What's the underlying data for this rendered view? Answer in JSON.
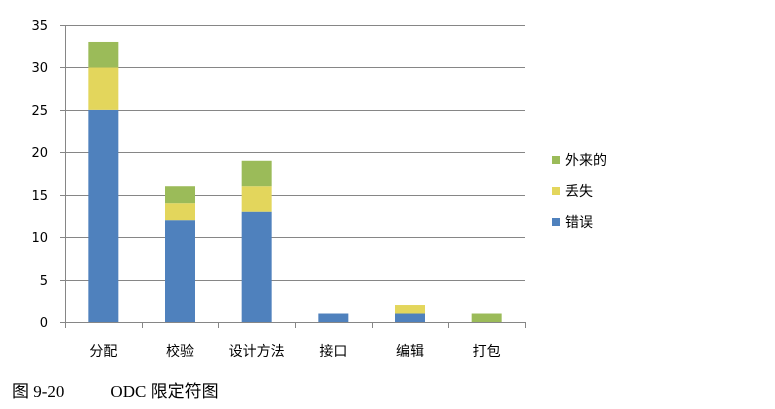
{
  "chart_data": {
    "type": "bar",
    "stacked": true,
    "categories": [
      "分配",
      "校验",
      "设计方法",
      "接口",
      "编辑",
      "打包"
    ],
    "series": [
      {
        "name": "错误",
        "values": [
          25,
          12,
          13,
          1,
          1,
          0
        ],
        "color": "#4F81BD"
      },
      {
        "name": "丢失",
        "values": [
          5,
          2,
          3,
          0,
          1,
          0
        ],
        "color": "#E3D65C"
      },
      {
        "name": "外来的",
        "values": [
          3,
          2,
          3,
          0,
          0,
          1
        ],
        "color": "#9BBB59"
      }
    ],
    "ylim": [
      0,
      35
    ],
    "yticks": [
      0,
      5,
      10,
      15,
      20,
      25,
      30,
      35
    ],
    "grid": true,
    "legend_position": "right"
  },
  "caption": {
    "number": "图 9-20",
    "title": "ODC 限定符图"
  }
}
